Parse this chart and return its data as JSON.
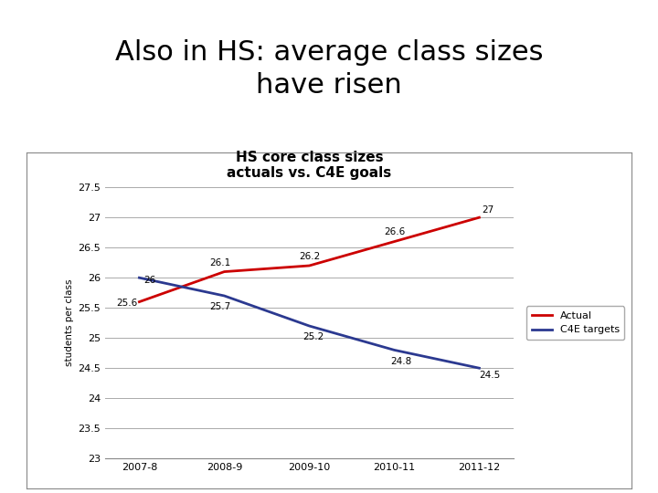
{
  "title": "HS core class sizes\nactuals vs. C4E goals",
  "xlabel": "",
  "ylabel": "students per class",
  "x_labels": [
    "2007-8",
    "2008-9",
    "2009-10",
    "2010-11",
    "2011-12"
  ],
  "actual_values": [
    25.6,
    26.1,
    26.2,
    26.6,
    27.0
  ],
  "target_values": [
    26.0,
    25.7,
    25.2,
    24.8,
    24.5
  ],
  "actual_color": "#CC0000",
  "target_color": "#2B3990",
  "ylim": [
    23.0,
    27.5
  ],
  "yticks": [
    23.0,
    23.5,
    24.0,
    24.5,
    25.0,
    25.5,
    26.0,
    26.5,
    27.0,
    27.5
  ],
  "header_bg": "#c6dee8",
  "header_text": "Also in HS: average class sizes\nhave risen",
  "header_fontsize": 22,
  "title_fontsize": 11,
  "legend_actual": "Actual",
  "legend_target": "C4E targets",
  "actual_labels": [
    "25.6",
    "26.1",
    "26.2",
    "26.6",
    "27"
  ],
  "target_labels": [
    "26",
    "25.7",
    "25.2",
    "24.8",
    "24.5"
  ],
  "chart_bg": "white",
  "border_color": "#888888"
}
